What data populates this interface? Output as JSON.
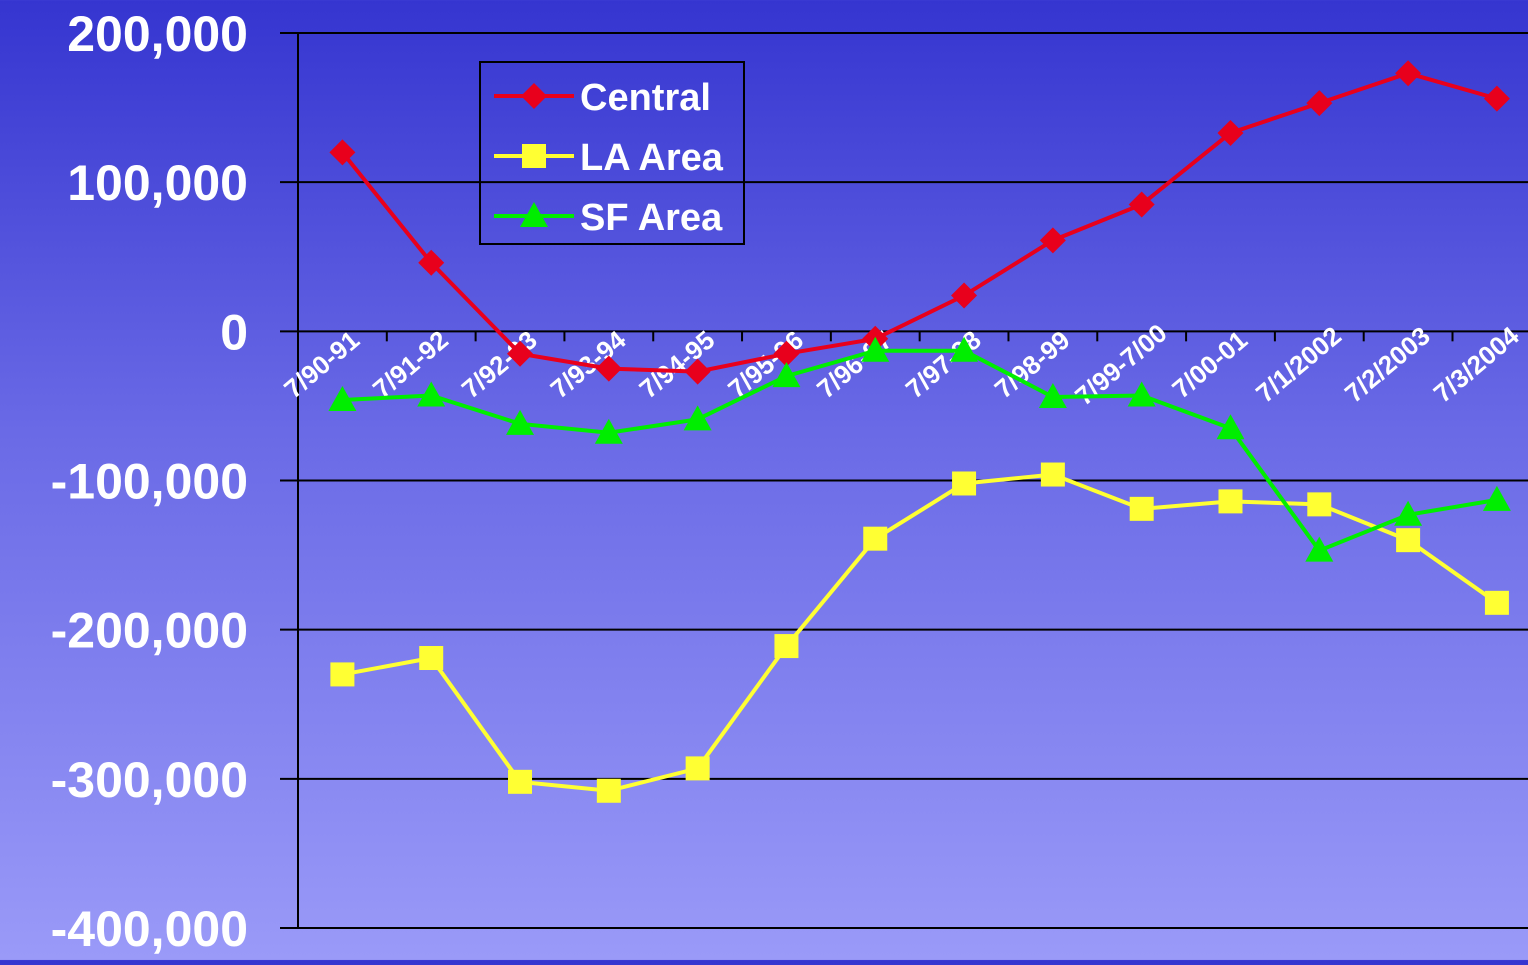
{
  "chart_data": {
    "type": "line",
    "categories": [
      "7/90-91",
      "7/91-92",
      "7/92-93",
      "7/93-94",
      "7/94-95",
      "7/95-96",
      "7/96-97",
      "7/97-98",
      "7/98-99",
      "7/99-7/00",
      "7/00-01",
      "7/1/2002",
      "7/2/2003",
      "7/3/2004"
    ],
    "ylim": [
      -400000,
      200000
    ],
    "yticks": [
      200000,
      100000,
      0,
      -100000,
      -200000,
      -300000,
      -400000
    ],
    "ytick_labels": [
      "200,000",
      "100,000",
      "0",
      "-100,000",
      "-200,000",
      "-300,000",
      "-400,000"
    ],
    "grid": true,
    "legend_position": "top-left",
    "series": [
      {
        "name": "Central",
        "color": "#e8001c",
        "marker": "diamond",
        "values": [
          120000,
          46000,
          -15000,
          -25000,
          -27000,
          -15000,
          -5000,
          24000,
          61000,
          85000,
          133000,
          153000,
          173000,
          156000
        ]
      },
      {
        "name": "LA Area",
        "color": "#ffff33",
        "marker": "square",
        "values": [
          -230000,
          -219000,
          -302000,
          -308000,
          -293000,
          -211000,
          -139000,
          -102000,
          -96000,
          -119000,
          -114000,
          -116000,
          -140000,
          -182000
        ]
      },
      {
        "name": "SF Area",
        "color": "#00ee00",
        "marker": "triangle",
        "values": [
          -46000,
          -43000,
          -62000,
          -68000,
          -59000,
          -30000,
          -13000,
          -13000,
          -44000,
          -43000,
          -65000,
          -147000,
          -123000,
          -113000
        ]
      }
    ]
  }
}
